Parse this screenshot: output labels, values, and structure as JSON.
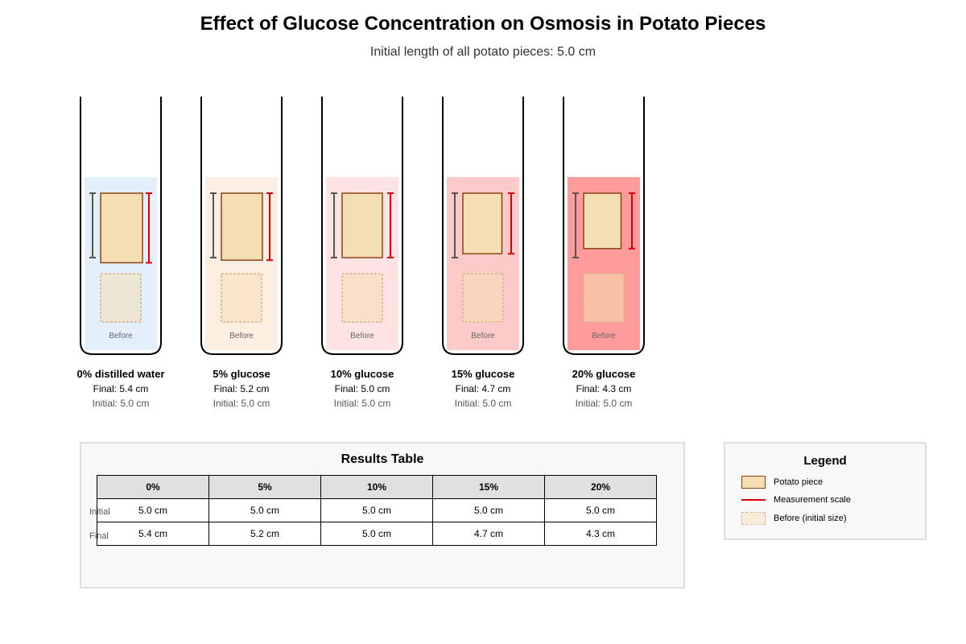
{
  "title": "Effect of Glucose Concentration on Osmosis in Potato Pieces",
  "subtitle": "Initial length of all potato pieces: 5.0 cm",
  "before_label": "Before",
  "chart_data": {
    "type": "table",
    "tubes": [
      {
        "name": "0% distilled water",
        "final_text": "Final: 5.4 cm",
        "initial_text": "Initial: 5.0 cm",
        "final": 5.4,
        "initial": 5.0,
        "color": "#e3f0fc"
      },
      {
        "name": "5% glucose",
        "final_text": "Final: 5.2 cm",
        "initial_text": "Initial: 5.0 cm",
        "final": 5.2,
        "initial": 5.0,
        "color": "#fdeee2"
      },
      {
        "name": "10% glucose",
        "final_text": "Final: 5.0 cm",
        "initial_text": "Initial: 5.0 cm",
        "final": 5.0,
        "initial": 5.0,
        "color": "#fde3e3"
      },
      {
        "name": "15% glucose",
        "final_text": "Final: 4.7 cm",
        "initial_text": "Initial: 5.0 cm",
        "final": 4.7,
        "initial": 5.0,
        "color": "#fdcaca"
      },
      {
        "name": "20% glucose",
        "final_text": "Final: 4.3 cm",
        "initial_text": "Initial: 5.0 cm",
        "final": 4.3,
        "initial": 5.0,
        "color": "#ff9b9b"
      }
    ]
  },
  "results": {
    "title": "Results Table",
    "headers": [
      "0%",
      "5%",
      "10%",
      "15%",
      "20%"
    ],
    "rows": [
      {
        "label": "Initial",
        "values": [
          "5.0 cm",
          "5.0 cm",
          "5.0 cm",
          "5.0 cm",
          "5.0 cm"
        ]
      },
      {
        "label": "Final",
        "values": [
          "5.4 cm",
          "5.2 cm",
          "5.0 cm",
          "4.7 cm",
          "4.3 cm"
        ]
      }
    ]
  },
  "legend": {
    "title": "Legend",
    "items": [
      "Potato piece",
      "Measurement scale",
      "Before (initial size)"
    ]
  },
  "colors": {
    "potato_fill": "#f5deb3",
    "potato_stroke": "#8b4513",
    "scale_final": "#dd0000",
    "scale_initial": "#555555"
  }
}
